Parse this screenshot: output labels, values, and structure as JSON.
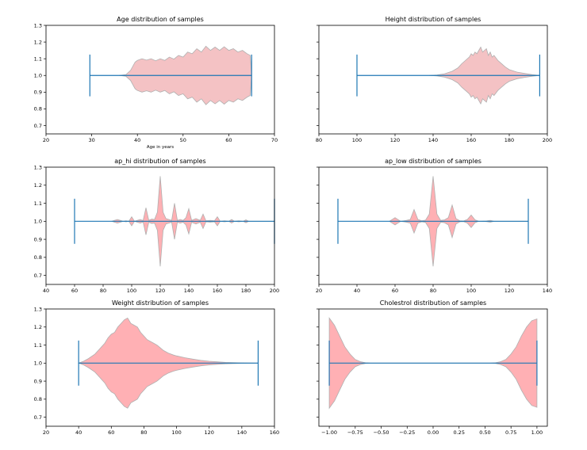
{
  "chart_data": [
    {
      "type": "violin",
      "title": "Age distribution of samples",
      "xlabel": "Age in years",
      "xlim": [
        20,
        70
      ],
      "xticks": [
        20,
        30,
        40,
        50,
        60,
        70
      ],
      "ylim": [
        0.65,
        1.3
      ],
      "yticks": [
        0.7,
        0.8,
        0.9,
        1.0,
        1.1,
        1.2,
        1.3
      ],
      "ytick_labels": true,
      "whisker": {
        "min": 29.6,
        "max": 65
      },
      "density": [
        [
          36,
          0
        ],
        [
          37.5,
          0.005
        ],
        [
          38.5,
          0.03
        ],
        [
          39.5,
          0.08
        ],
        [
          40,
          0.09
        ],
        [
          41,
          0.1
        ],
        [
          42,
          0.092
        ],
        [
          43,
          0.1
        ],
        [
          44,
          0.088
        ],
        [
          45,
          0.1
        ],
        [
          46,
          0.09
        ],
        [
          47,
          0.11
        ],
        [
          48,
          0.098
        ],
        [
          49,
          0.12
        ],
        [
          50,
          0.11
        ],
        [
          51,
          0.14
        ],
        [
          52,
          0.13
        ],
        [
          53,
          0.16
        ],
        [
          54,
          0.14
        ],
        [
          55,
          0.175
        ],
        [
          56,
          0.15
        ],
        [
          57,
          0.17
        ],
        [
          58,
          0.15
        ],
        [
          59,
          0.172
        ],
        [
          60,
          0.15
        ],
        [
          61,
          0.16
        ],
        [
          62,
          0.14
        ],
        [
          63,
          0.15
        ],
        [
          64,
          0.13
        ],
        [
          64.7,
          0.12
        ],
        [
          65,
          0
        ]
      ],
      "fill": "#f4c2c4",
      "edge": "#b0b0b0",
      "line_color": "#1f77b4"
    },
    {
      "type": "violin",
      "title": "Height distribution of samples",
      "xlabel": "",
      "xlim": [
        80,
        200
      ],
      "xticks": [
        80,
        100,
        120,
        140,
        160,
        180,
        200
      ],
      "ylim": [
        0.65,
        1.3
      ],
      "yticks": [
        0.7,
        0.8,
        0.9,
        1.0,
        1.1,
        1.2,
        1.3
      ],
      "ytick_labels": false,
      "whisker": {
        "min": 100,
        "max": 196
      },
      "density": [
        [
          138,
          0
        ],
        [
          142,
          0.003
        ],
        [
          146,
          0.01
        ],
        [
          150,
          0.025
        ],
        [
          153,
          0.045
        ],
        [
          155,
          0.07
        ],
        [
          157,
          0.09
        ],
        [
          159,
          0.11
        ],
        [
          160,
          0.13
        ],
        [
          161,
          0.12
        ],
        [
          162,
          0.14
        ],
        [
          163,
          0.13
        ],
        [
          164,
          0.15
        ],
        [
          165,
          0.17
        ],
        [
          166,
          0.14
        ],
        [
          167,
          0.15
        ],
        [
          168,
          0.16
        ],
        [
          169,
          0.12
        ],
        [
          170,
          0.14
        ],
        [
          171,
          0.11
        ],
        [
          172,
          0.12
        ],
        [
          174,
          0.09
        ],
        [
          176,
          0.07
        ],
        [
          178,
          0.05
        ],
        [
          180,
          0.035
        ],
        [
          184,
          0.02
        ],
        [
          188,
          0.012
        ],
        [
          192,
          0.005
        ],
        [
          196,
          0
        ]
      ],
      "fill": "#f4c2c4",
      "edge": "#b0b0b0",
      "line_color": "#1f77b4"
    },
    {
      "type": "violin",
      "title": "ap_hi distribution of samples",
      "xlabel": "",
      "xlim": [
        40,
        200
      ],
      "xticks": [
        40,
        60,
        80,
        100,
        120,
        140,
        160,
        180,
        200
      ],
      "ylim": [
        0.65,
        1.3
      ],
      "yticks": [
        0.7,
        0.8,
        0.9,
        1.0,
        1.1,
        1.2,
        1.3
      ],
      "ytick_labels": true,
      "whisker": {
        "min": 60,
        "max": 200
      },
      "density": [
        [
          86,
          0
        ],
        [
          88,
          0.005
        ],
        [
          90,
          0.01
        ],
        [
          92,
          0.005
        ],
        [
          94,
          0
        ],
        [
          96,
          0.003
        ],
        [
          98,
          0
        ],
        [
          100,
          0.025
        ],
        [
          102,
          0
        ],
        [
          104,
          0.005
        ],
        [
          106,
          0.01
        ],
        [
          108,
          0.004
        ],
        [
          110,
          0.075
        ],
        [
          112,
          0.005
        ],
        [
          114,
          0.012
        ],
        [
          116,
          0.01
        ],
        [
          118,
          0.05
        ],
        [
          120,
          0.25
        ],
        [
          122,
          0.05
        ],
        [
          124,
          0.015
        ],
        [
          126,
          0.01
        ],
        [
          128,
          0.005
        ],
        [
          130,
          0.1
        ],
        [
          132,
          0.005
        ],
        [
          134,
          0.01
        ],
        [
          136,
          0.005
        ],
        [
          138,
          0.02
        ],
        [
          140,
          0.07
        ],
        [
          142,
          0.005
        ],
        [
          145,
          0.015
        ],
        [
          148,
          0.005
        ],
        [
          150,
          0.04
        ],
        [
          152,
          0.003
        ],
        [
          155,
          0.005
        ],
        [
          158,
          0.003
        ],
        [
          160,
          0.025
        ],
        [
          162,
          0
        ],
        [
          165,
          0.003
        ],
        [
          168,
          0
        ],
        [
          170,
          0.01
        ],
        [
          172,
          0
        ],
        [
          175,
          0.003
        ],
        [
          178,
          0
        ],
        [
          180,
          0.008
        ],
        [
          182,
          0
        ],
        [
          200,
          0
        ]
      ],
      "fill": "#ffb0b4",
      "edge": "#b0b0b0",
      "line_color": "#1f77b4"
    },
    {
      "type": "violin",
      "title": "ap_low distribution of samples",
      "xlabel": "",
      "xlim": [
        20,
        140
      ],
      "xticks": [
        20,
        40,
        60,
        80,
        100,
        120,
        140
      ],
      "ylim": [
        0.65,
        1.3
      ],
      "yticks": [
        0.7,
        0.8,
        0.9,
        1.0,
        1.1,
        1.2,
        1.3
      ],
      "ytick_labels": false,
      "whisker": {
        "min": 30,
        "max": 130
      },
      "density": [
        [
          57,
          0
        ],
        [
          58.5,
          0.01
        ],
        [
          60,
          0.02
        ],
        [
          61.5,
          0.01
        ],
        [
          63,
          0
        ],
        [
          66,
          0.005
        ],
        [
          68,
          0.01
        ],
        [
          70,
          0.065
        ],
        [
          72,
          0.01
        ],
        [
          74,
          0.003
        ],
        [
          76,
          0.006
        ],
        [
          78,
          0.04
        ],
        [
          80,
          0.25
        ],
        [
          82,
          0.04
        ],
        [
          84,
          0.005
        ],
        [
          86,
          0.008
        ],
        [
          88,
          0.02
        ],
        [
          90,
          0.09
        ],
        [
          92,
          0.015
        ],
        [
          94,
          0.003
        ],
        [
          96,
          0.002
        ],
        [
          98,
          0.01
        ],
        [
          100,
          0.035
        ],
        [
          102,
          0.008
        ],
        [
          104,
          0
        ],
        [
          108,
          0.002
        ],
        [
          110,
          0.005
        ],
        [
          112,
          0
        ],
        [
          130,
          0
        ]
      ],
      "fill": "#ffb0b4",
      "edge": "#b0b0b0",
      "line_color": "#1f77b4"
    },
    {
      "type": "violin",
      "title": "Weight distribution of samples",
      "xlabel": "",
      "xlim": [
        20,
        160
      ],
      "xticks": [
        20,
        40,
        60,
        80,
        100,
        120,
        140,
        160
      ],
      "ylim": [
        0.65,
        1.3
      ],
      "yticks": [
        0.7,
        0.8,
        0.9,
        1.0,
        1.1,
        1.2,
        1.3
      ],
      "ytick_labels": true,
      "whisker": {
        "min": 40,
        "max": 150
      },
      "density": [
        [
          40,
          0
        ],
        [
          43,
          0.01
        ],
        [
          46,
          0.025
        ],
        [
          50,
          0.05
        ],
        [
          53,
          0.08
        ],
        [
          56,
          0.11
        ],
        [
          58,
          0.14
        ],
        [
          60,
          0.16
        ],
        [
          62,
          0.17
        ],
        [
          64,
          0.2
        ],
        [
          66,
          0.22
        ],
        [
          68,
          0.24
        ],
        [
          70,
          0.25
        ],
        [
          72,
          0.22
        ],
        [
          74,
          0.21
        ],
        [
          76,
          0.2
        ],
        [
          78,
          0.17
        ],
        [
          80,
          0.15
        ],
        [
          82,
          0.13
        ],
        [
          84,
          0.12
        ],
        [
          86,
          0.11
        ],
        [
          88,
          0.1
        ],
        [
          90,
          0.085
        ],
        [
          92,
          0.07
        ],
        [
          95,
          0.055
        ],
        [
          98,
          0.045
        ],
        [
          100,
          0.04
        ],
        [
          105,
          0.03
        ],
        [
          110,
          0.022
        ],
        [
          115,
          0.015
        ],
        [
          120,
          0.01
        ],
        [
          125,
          0.007
        ],
        [
          130,
          0.004
        ],
        [
          140,
          0.001
        ],
        [
          150,
          0
        ]
      ],
      "fill": "#ffb0b4",
      "edge": "#b0b0b0",
      "line_color": "#1f77b4"
    },
    {
      "type": "violin",
      "title": "Cholestrol distribution of samples",
      "xlabel": "",
      "xlim": [
        -1.1,
        1.1
      ],
      "xticks": [
        -1.0,
        -0.75,
        -0.5,
        -0.25,
        0.0,
        0.25,
        0.5,
        0.75,
        1.0
      ],
      "xtick_labels": [
        "−1.00",
        "−0.75",
        "−0.50",
        "−0.25",
        "0.00",
        "0.25",
        "0.50",
        "0.75",
        "1.00"
      ],
      "ylim": [
        0.65,
        1.3
      ],
      "yticks": [
        0.7,
        0.8,
        0.9,
        1.0,
        1.1,
        1.2,
        1.3
      ],
      "ytick_labels": false,
      "whisker": {
        "min": -1.0,
        "max": 1.0
      },
      "density": [
        [
          -1.0,
          0.25
        ],
        [
          -0.95,
          0.21
        ],
        [
          -0.9,
          0.15
        ],
        [
          -0.85,
          0.09
        ],
        [
          -0.8,
          0.05
        ],
        [
          -0.75,
          0.02
        ],
        [
          -0.7,
          0.008
        ],
        [
          -0.65,
          0.002
        ],
        [
          -0.6,
          0
        ],
        [
          0.55,
          0
        ],
        [
          0.6,
          0.002
        ],
        [
          0.65,
          0.008
        ],
        [
          0.7,
          0.02
        ],
        [
          0.75,
          0.05
        ],
        [
          0.8,
          0.09
        ],
        [
          0.85,
          0.15
        ],
        [
          0.9,
          0.2
        ],
        [
          0.95,
          0.235
        ],
        [
          1.0,
          0.245
        ]
      ],
      "fill": "#ffb0b4",
      "edge": "#b0b0b0",
      "line_color": "#1f77b4"
    }
  ]
}
